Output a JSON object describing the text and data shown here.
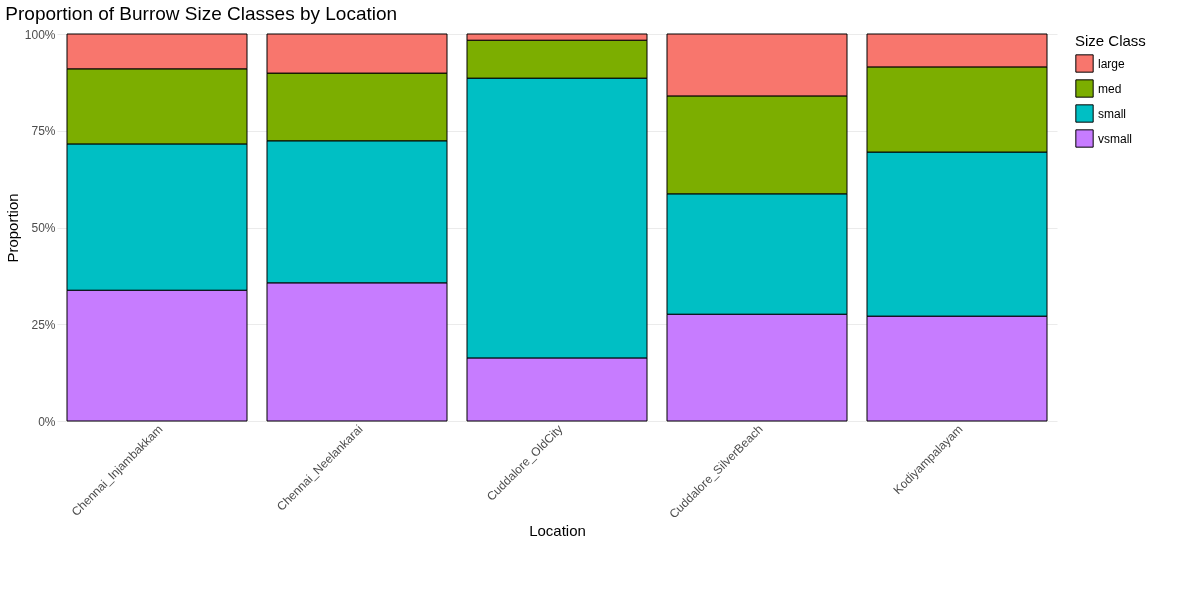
{
  "chart_data": {
    "type": "bar",
    "title": "Proportion of Burrow Size Classes by Location",
    "xlabel": "Location",
    "ylabel": "Proportion",
    "legend_title": "Size Class",
    "categories": [
      "Chennai_Injambakkam",
      "Chennai_Neelankarai",
      "Cuddalore_OldCity",
      "Cuddalore_SilverBeach",
      "Kodiyampalayam"
    ],
    "stacked": true,
    "series": [
      {
        "name": "vsmall",
        "color": "#c77cff",
        "values": [
          33.8,
          35.7,
          16.3,
          27.6,
          27.1
        ]
      },
      {
        "name": "small",
        "color": "#00bfc4",
        "values": [
          37.8,
          36.7,
          72.3,
          31.1,
          42.4
        ]
      },
      {
        "name": "med",
        "color": "#7cae00",
        "values": [
          19.4,
          17.5,
          9.8,
          25.3,
          22.0
        ]
      },
      {
        "name": "large",
        "color": "#f8766d",
        "values": [
          9.0,
          10.1,
          1.6,
          16.0,
          8.5
        ]
      }
    ],
    "ylim": [
      0,
      100
    ],
    "yticks": [
      {
        "value": 0,
        "label": "0%"
      },
      {
        "value": 25,
        "label": "25%"
      },
      {
        "value": 50,
        "label": "50%"
      },
      {
        "value": 75,
        "label": "75%"
      },
      {
        "value": 100,
        "label": "100%"
      }
    ],
    "grid": true,
    "legend": "right"
  }
}
